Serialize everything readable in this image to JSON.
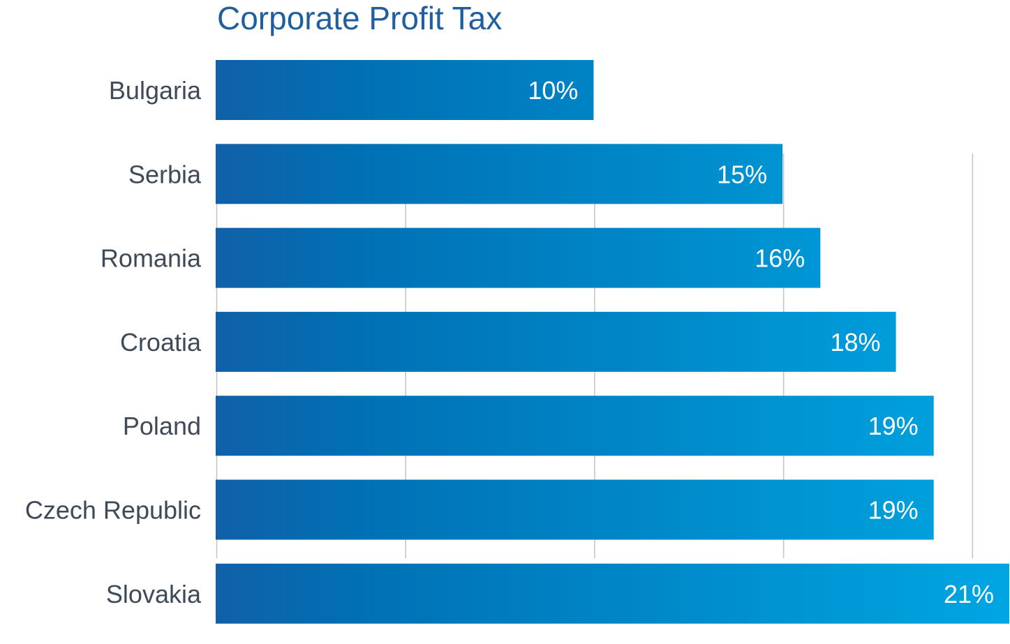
{
  "chart_data": {
    "type": "bar",
    "orientation": "horizontal",
    "title": "Corporate Profit Tax",
    "categories": [
      "Bulgaria",
      "Serbia",
      "Romania",
      "Croatia",
      "Poland",
      "Czech Republic",
      "Slovakia"
    ],
    "values": [
      10,
      15,
      16,
      18,
      19,
      19,
      21
    ],
    "data_labels": [
      "10%",
      "15%",
      "16%",
      "18%",
      "19%",
      "19%",
      "21%"
    ],
    "xlim": [
      0,
      21
    ],
    "grid_step": 5,
    "grid": true,
    "legend": "none",
    "colors": {
      "bar_start": "#1160a8",
      "bar_mid": "#0070b4",
      "bar_end": "#00a6e2"
    }
  }
}
